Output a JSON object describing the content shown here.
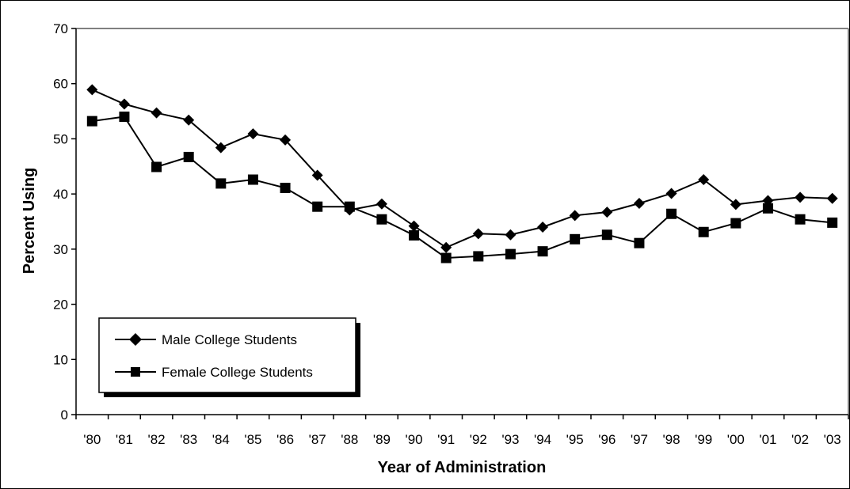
{
  "chart_data": {
    "type": "line",
    "title": "",
    "xlabel": "Year of Administration",
    "ylabel": "Percent Using",
    "ylim": [
      0,
      70
    ],
    "yticks": [
      0,
      10,
      20,
      30,
      40,
      50,
      60,
      70
    ],
    "grid": false,
    "legend_position": "bottom-left",
    "categories": [
      "'80",
      "'81",
      "'82",
      "'83",
      "'84",
      "'85",
      "'86",
      "'87",
      "'88",
      "'89",
      "'90",
      "'91",
      "'92",
      "'93",
      "'94",
      "'95",
      "'96",
      "'97",
      "'98",
      "'99",
      "'00",
      "'01",
      "'02",
      "'03"
    ],
    "series": [
      {
        "name": "Male College Students",
        "marker": "diamond",
        "color": "#000000",
        "values": [
          58.9,
          56.3,
          54.7,
          53.4,
          48.4,
          50.9,
          49.8,
          43.4,
          37.1,
          38.2,
          34.2,
          30.3,
          32.8,
          32.6,
          34.0,
          36.1,
          36.7,
          38.3,
          40.1,
          42.6,
          38.1,
          38.8,
          39.4,
          39.2
        ]
      },
      {
        "name": "Female College Students",
        "marker": "square",
        "color": "#000000",
        "values": [
          53.2,
          54.0,
          44.9,
          46.7,
          41.9,
          42.6,
          41.1,
          37.7,
          37.7,
          35.4,
          32.5,
          28.4,
          28.7,
          29.1,
          29.6,
          31.8,
          32.6,
          31.1,
          36.4,
          33.1,
          34.7,
          37.4,
          35.4,
          34.8
        ]
      }
    ]
  }
}
